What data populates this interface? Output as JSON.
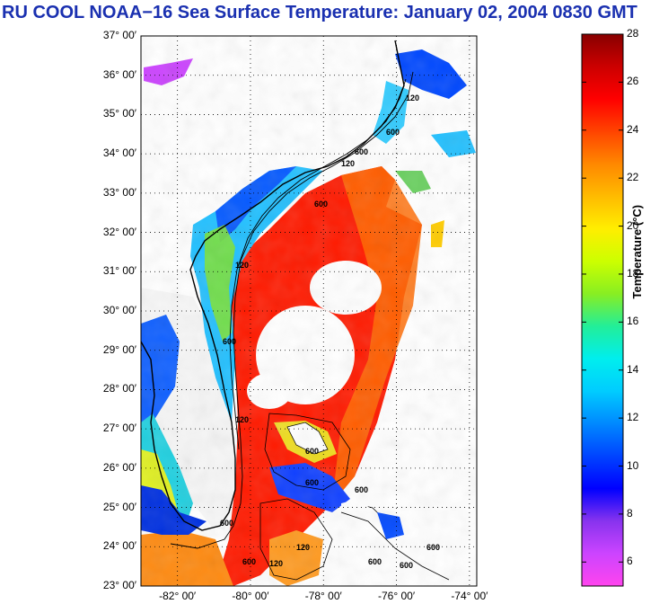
{
  "title": "RU COOL  NOAA−16  Sea Surface Temperature:  January 02, 2004 0830 GMT",
  "map": {
    "lat_ticks": [
      {
        "value": 37,
        "label": "37° 00′"
      },
      {
        "value": 36,
        "label": "36° 00′"
      },
      {
        "value": 35,
        "label": "35° 00′"
      },
      {
        "value": 34,
        "label": "34° 00′"
      },
      {
        "value": 33,
        "label": "33° 00′"
      },
      {
        "value": 32,
        "label": "32° 00′"
      },
      {
        "value": 31,
        "label": "31° 00′"
      },
      {
        "value": 30,
        "label": "30° 00′"
      },
      {
        "value": 29,
        "label": "29° 00′"
      },
      {
        "value": 28,
        "label": "28° 00′"
      },
      {
        "value": 27,
        "label": "27° 00′"
      },
      {
        "value": 26,
        "label": "26° 00′"
      },
      {
        "value": 25,
        "label": "25° 00′"
      },
      {
        "value": 24,
        "label": "24° 00′"
      },
      {
        "value": 23,
        "label": "23° 00′"
      }
    ],
    "lon_ticks": [
      {
        "value": -82,
        "label": "-82° 00′"
      },
      {
        "value": -80,
        "label": "-80° 00′"
      },
      {
        "value": -78,
        "label": "-78° 00′"
      },
      {
        "value": -76,
        "label": "-76° 00′"
      },
      {
        "value": -74,
        "label": "-74° 00′"
      }
    ],
    "lat_range": [
      23,
      37
    ],
    "lon_range": [
      -83,
      -73.8
    ],
    "isobath_labels": [
      "120",
      "600",
      "120",
      "600",
      "120",
      "600",
      "600",
      "600",
      "600",
      "120",
      "600",
      "120",
      "600",
      "120",
      "600",
      "600",
      "600",
      "600"
    ]
  },
  "colorbar": {
    "label": "Temperature (°C)",
    "range": [
      5,
      28
    ],
    "ticks": [
      {
        "value": 28,
        "label": "28"
      },
      {
        "value": 26,
        "label": "26"
      },
      {
        "value": 24,
        "label": "24"
      },
      {
        "value": 22,
        "label": "22"
      },
      {
        "value": 20,
        "label": "20"
      },
      {
        "value": 18,
        "label": "18"
      },
      {
        "value": 16,
        "label": "16"
      },
      {
        "value": 14,
        "label": "14"
      },
      {
        "value": 12,
        "label": "12"
      },
      {
        "value": 10,
        "label": "10"
      },
      {
        "value": 8,
        "label": "8"
      },
      {
        "value": 6,
        "label": "6"
      }
    ],
    "colors": [
      "#ff44ee",
      "#cc44ff",
      "#8833ee",
      "#0000ff",
      "#0044ff",
      "#0088ff",
      "#00ccff",
      "#00eeee",
      "#22ee99",
      "#88ee22",
      "#ccff00",
      "#ffee00",
      "#ffbb00",
      "#ff8800",
      "#ff4400",
      "#ff0000",
      "#cc0000",
      "#880000"
    ]
  }
}
